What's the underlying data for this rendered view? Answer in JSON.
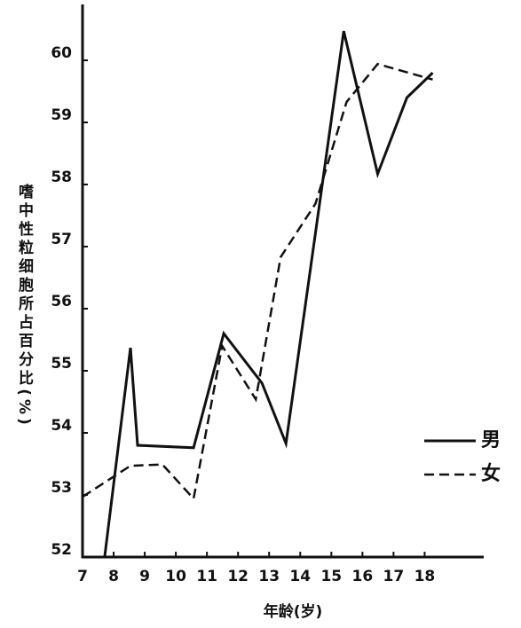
{
  "chart_data": {
    "type": "line",
    "x_label": "年龄(岁)",
    "y_label": "嗜中性粒细胞所占百分比(%)",
    "xlim": [
      7,
      19.9
    ],
    "ylim": [
      52,
      60.9
    ],
    "xticks": [
      7,
      8,
      9,
      10,
      11,
      12,
      13,
      14,
      15,
      16,
      17,
      18
    ],
    "yticks": [
      52,
      53,
      54,
      55,
      56,
      57,
      58,
      59,
      60
    ],
    "legend": "right",
    "series": [
      {
        "name": "男",
        "color": "#111111",
        "dash": "solid",
        "x": [
          7.71,
          8.54,
          8.77,
          10.57,
          11.54,
          12.77,
          13.54,
          15.4,
          16.49,
          17.43,
          18.26
        ],
        "values": [
          52,
          55.37,
          53.8,
          53.76,
          55.6,
          54.8,
          53.83,
          60.47,
          58.17,
          59.4,
          59.8
        ]
      },
      {
        "name": "女",
        "color": "#111111",
        "dash": "dashed",
        "x": [
          7,
          8.54,
          9.57,
          10.57,
          11.49,
          12.57,
          13.37,
          14.49,
          15.49,
          16.49,
          18.26
        ],
        "values": [
          52.97,
          53.47,
          53.49,
          52.94,
          55.4,
          54.54,
          56.83,
          57.69,
          59.33,
          59.94,
          59.69
        ]
      }
    ]
  }
}
